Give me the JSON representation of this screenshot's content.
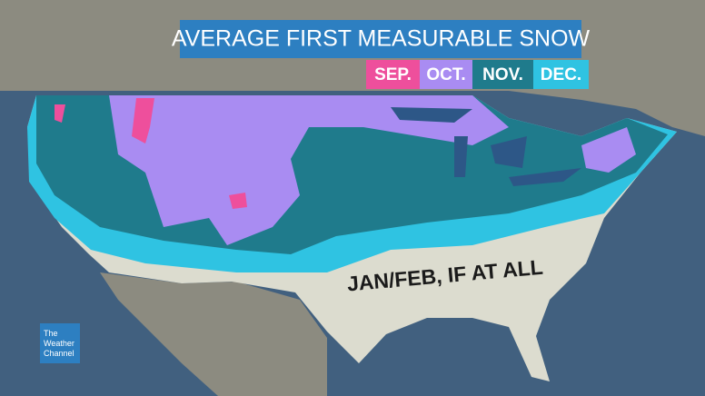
{
  "title": "AVERAGE FIRST MEASURABLE SNOW",
  "legend": [
    {
      "label": "SEP.",
      "color": "#ee4f9c"
    },
    {
      "label": "OCT.",
      "color": "#a98cf2"
    },
    {
      "label": "NOV.",
      "color": "#1f7b8c"
    },
    {
      "label": "DEC.",
      "color": "#2fc3e2"
    }
  ],
  "annotation": "JAN/FEB, IF AT ALL",
  "logo": [
    "The",
    "Weather",
    "Channel"
  ]
}
